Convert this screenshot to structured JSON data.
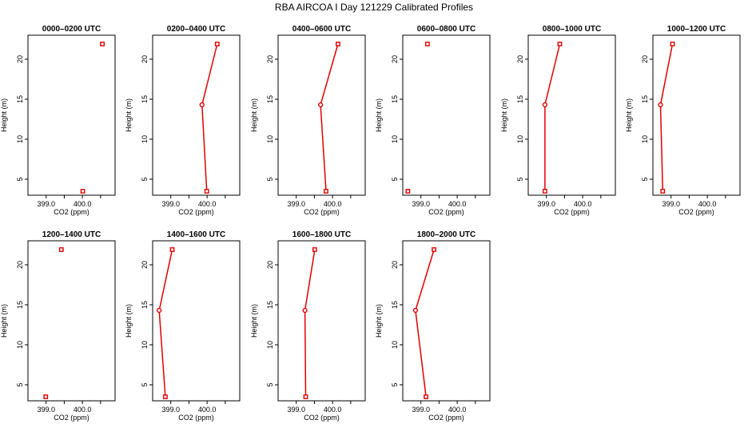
{
  "figure_title": "RBA AIRCOA I  Day 121229  Calibrated Profiles",
  "chart_data": [
    {
      "type": "line",
      "title": "0000–0200 UTC",
      "xlabel": "CO2 (ppm)",
      "ylabel": "Height (m)",
      "xlim": [
        398.5,
        400.9
      ],
      "ylim": [
        3.0,
        23.0
      ],
      "xticks": [
        "399.0",
        "400.0"
      ],
      "yticks": [
        "5",
        "10",
        "15",
        "20"
      ],
      "points": [
        {
          "x": 400.01,
          "y": 3.5,
          "marker": "square"
        },
        {
          "x": 400.55,
          "y": 21.9,
          "marker": "square"
        }
      ],
      "connected": false
    },
    {
      "type": "line",
      "title": "0200–0400 UTC",
      "xlabel": "CO2 (ppm)",
      "ylabel": "Height (m)",
      "xlim": [
        398.5,
        400.9
      ],
      "ylim": [
        3.0,
        23.0
      ],
      "xticks": [
        "399.0",
        "400.0"
      ],
      "yticks": [
        "5",
        "10",
        "15",
        "20"
      ],
      "points": [
        {
          "x": 399.99,
          "y": 3.5,
          "marker": "square"
        },
        {
          "x": 399.86,
          "y": 14.3,
          "marker": "circle"
        },
        {
          "x": 400.28,
          "y": 21.9,
          "marker": "square"
        }
      ],
      "connected": true
    },
    {
      "type": "line",
      "title": "0400–0600 UTC",
      "xlabel": "CO2 (ppm)",
      "ylabel": "Height (m)",
      "xlim": [
        398.5,
        400.9
      ],
      "ylim": [
        3.0,
        23.0
      ],
      "xticks": [
        "399.0",
        "400.0"
      ],
      "yticks": [
        "5",
        "10",
        "15",
        "20"
      ],
      "points": [
        {
          "x": 399.82,
          "y": 3.5,
          "marker": "square"
        },
        {
          "x": 399.67,
          "y": 14.3,
          "marker": "circle"
        },
        {
          "x": 400.15,
          "y": 21.9,
          "marker": "square"
        }
      ],
      "connected": true
    },
    {
      "type": "line",
      "title": "0600–0800 UTC",
      "xlabel": "CO2 (ppm)",
      "ylabel": "Height (m)",
      "xlim": [
        398.5,
        400.9
      ],
      "ylim": [
        3.0,
        23.0
      ],
      "xticks": [
        "399.0",
        "400.0"
      ],
      "yticks": [
        "5",
        "10",
        "15",
        "20"
      ],
      "points": [
        {
          "x": 398.64,
          "y": 3.5,
          "marker": "square"
        },
        {
          "x": 399.18,
          "y": 21.9,
          "marker": "square"
        }
      ],
      "connected": false
    },
    {
      "type": "line",
      "title": "0800–1000 UTC",
      "xlabel": "CO2 (ppm)",
      "ylabel": "Height (m)",
      "xlim": [
        398.5,
        400.9
      ],
      "ylim": [
        3.0,
        23.0
      ],
      "xticks": [
        "399.0",
        "400.0"
      ],
      "yticks": [
        "5",
        "10",
        "15",
        "20"
      ],
      "points": [
        {
          "x": 398.96,
          "y": 3.5,
          "marker": "square"
        },
        {
          "x": 398.96,
          "y": 14.3,
          "marker": "circle"
        },
        {
          "x": 399.37,
          "y": 21.9,
          "marker": "square"
        }
      ],
      "connected": true
    },
    {
      "type": "line",
      "title": "1000–1200 UTC",
      "xlabel": "CO2 (ppm)",
      "ylabel": "Height (m)",
      "xlim": [
        398.5,
        400.9
      ],
      "ylim": [
        3.0,
        23.0
      ],
      "xticks": [
        "399.0",
        "400.0"
      ],
      "yticks": [
        "5",
        "10",
        "15",
        "20"
      ],
      "points": [
        {
          "x": 398.77,
          "y": 3.5,
          "marker": "square"
        },
        {
          "x": 398.71,
          "y": 14.3,
          "marker": "circle"
        },
        {
          "x": 399.04,
          "y": 21.9,
          "marker": "square"
        }
      ],
      "connected": true
    },
    {
      "type": "line",
      "title": "1200–1400 UTC",
      "xlabel": "CO2 (ppm)",
      "ylabel": "Height (m)",
      "xlim": [
        398.5,
        400.9
      ],
      "ylim": [
        3.0,
        23.0
      ],
      "xticks": [
        "399.0",
        "400.0"
      ],
      "yticks": [
        "5",
        "10",
        "15",
        "20"
      ],
      "points": [
        {
          "x": 398.99,
          "y": 3.5,
          "marker": "square"
        },
        {
          "x": 399.42,
          "y": 21.9,
          "marker": "square"
        }
      ],
      "connected": false
    },
    {
      "type": "line",
      "title": "1400–1600 UTC",
      "xlabel": "CO2 (ppm)",
      "ylabel": "Height (m)",
      "xlim": [
        398.5,
        400.9
      ],
      "ylim": [
        3.0,
        23.0
      ],
      "xticks": [
        "399.0",
        "400.0"
      ],
      "yticks": [
        "5",
        "10",
        "15",
        "20"
      ],
      "points": [
        {
          "x": 398.85,
          "y": 3.5,
          "marker": "square"
        },
        {
          "x": 398.68,
          "y": 14.3,
          "marker": "circle"
        },
        {
          "x": 399.04,
          "y": 21.9,
          "marker": "square"
        }
      ],
      "connected": true
    },
    {
      "type": "line",
      "title": "1600–1800 UTC",
      "xlabel": "CO2 (ppm)",
      "ylabel": "Height (m)",
      "xlim": [
        398.5,
        400.9
      ],
      "ylim": [
        3.0,
        23.0
      ],
      "xticks": [
        "399.0",
        "400.0"
      ],
      "yticks": [
        "5",
        "10",
        "15",
        "20"
      ],
      "points": [
        {
          "x": 399.26,
          "y": 3.5,
          "marker": "square"
        },
        {
          "x": 399.24,
          "y": 14.3,
          "marker": "circle"
        },
        {
          "x": 399.51,
          "y": 21.9,
          "marker": "square"
        }
      ],
      "connected": true
    },
    {
      "type": "line",
      "title": "1800–2000 UTC",
      "xlabel": "CO2 (ppm)",
      "ylabel": "Height (m)",
      "xlim": [
        398.5,
        400.9
      ],
      "ylim": [
        3.0,
        23.0
      ],
      "xticks": [
        "399.0",
        "400.0"
      ],
      "yticks": [
        "5",
        "10",
        "15",
        "20"
      ],
      "points": [
        {
          "x": 399.14,
          "y": 3.5,
          "marker": "square"
        },
        {
          "x": 398.85,
          "y": 14.3,
          "marker": "circle"
        },
        {
          "x": 399.36,
          "y": 21.9,
          "marker": "square"
        }
      ],
      "connected": true
    }
  ],
  "style": {
    "series_color": "#e00000",
    "frame_color": "#000000",
    "background": "#ffffff"
  }
}
